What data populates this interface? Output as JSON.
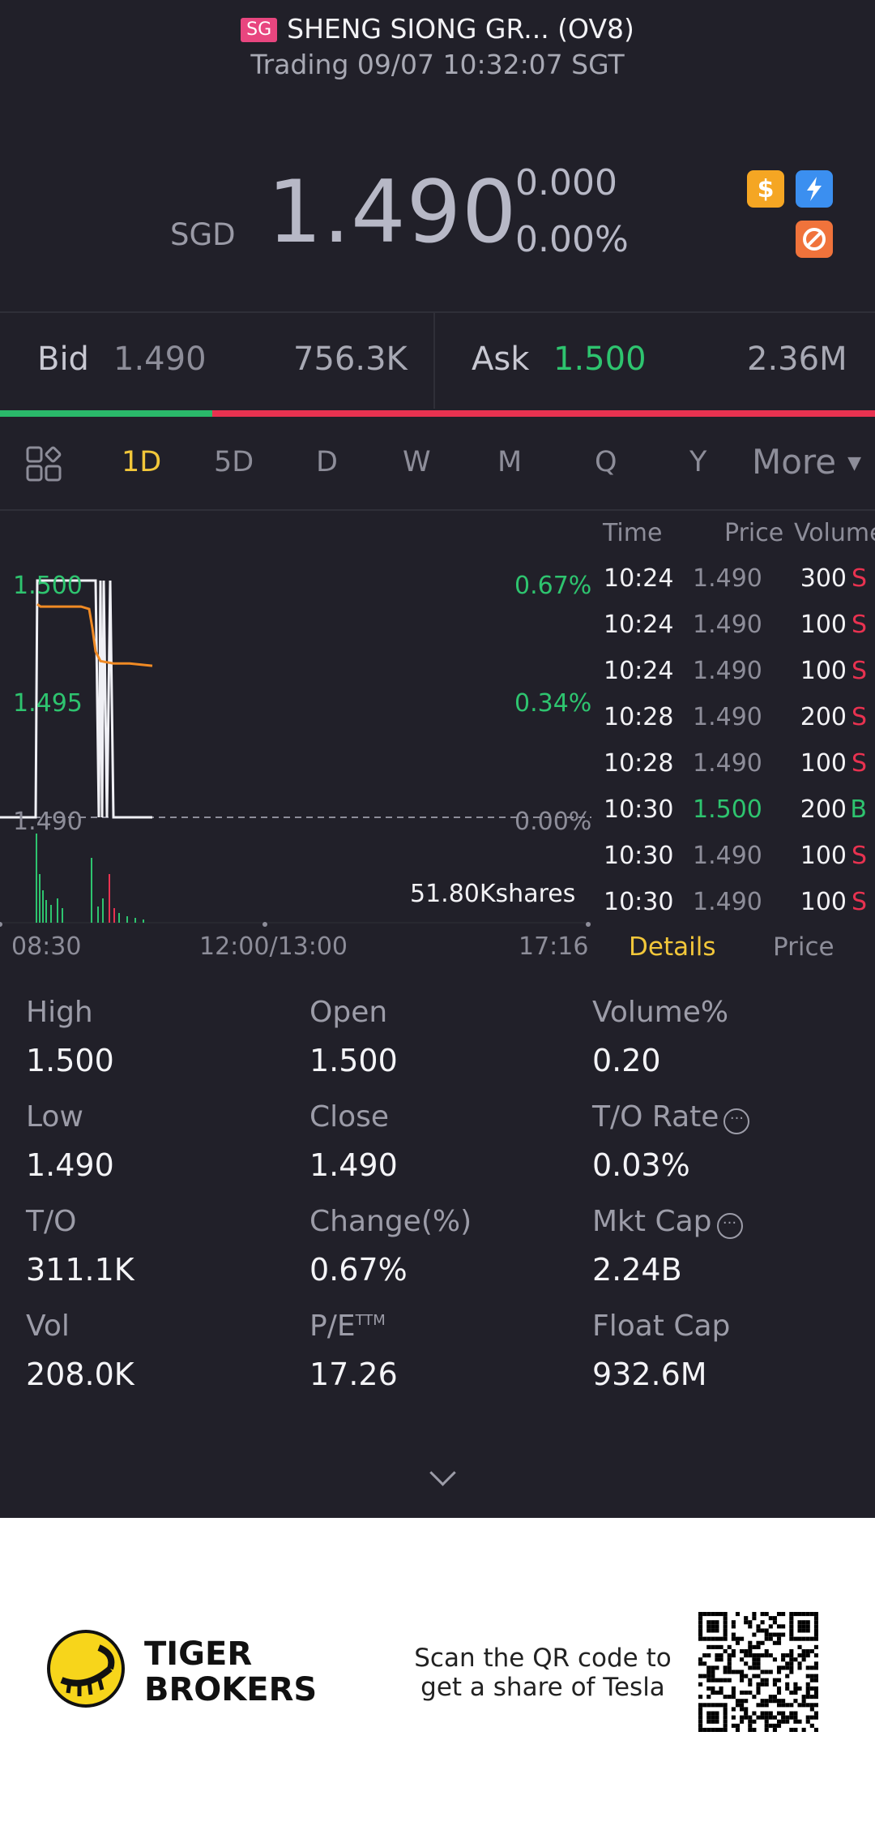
{
  "header": {
    "market_badge": "SG",
    "title": "SHENG SIONG GR... (OV8)",
    "status": "Trading 09/07 10:32:07 SGT"
  },
  "quote": {
    "currency": "SGD",
    "price": "1.490",
    "change": "0.000",
    "change_pct": "0.00%"
  },
  "icons": [
    "dollar-icon",
    "lightning-level1-icon",
    "ban-short-icon"
  ],
  "bid_ask": {
    "bid_label": "Bid",
    "bid_price": "1.490",
    "bid_size": "756.3K",
    "ask_label": "Ask",
    "ask_price": "1.500",
    "ask_size": "2.36M",
    "bid_ratio": 0.243
  },
  "period_tabs": [
    "1D",
    "5D",
    "D",
    "W",
    "M",
    "Q",
    "Y"
  ],
  "more_label": "More",
  "active_tab": "1D",
  "chart_data": {
    "type": "line",
    "title": "",
    "y_left_labels": [
      "1.500",
      "1.495",
      "1.490"
    ],
    "y_right_labels": [
      "0.67%",
      "0.34%",
      "0.00%"
    ],
    "x_labels": [
      "08:30",
      "12:00/13:00",
      "17:16"
    ],
    "volume_label": "51.80Kshares",
    "ylim": [
      1.49,
      1.5
    ],
    "series": [
      {
        "values": [
          1.49,
          1.49,
          1.49,
          1.5,
          1.5,
          1.5,
          1.5,
          1.5,
          1.49,
          1.5,
          1.49,
          1.5,
          1.49,
          1.5,
          1.49,
          1.49,
          1.49
        ]
      },
      {
        "values": [
          1.499,
          1.4989,
          1.4989,
          1.4989,
          1.4989,
          1.4988,
          1.498,
          1.497,
          1.4966,
          1.4965,
          1.4965,
          1.4964
        ]
      }
    ]
  },
  "trades": {
    "headers": {
      "time": "Time",
      "price": "Price",
      "volume": "Volume"
    },
    "rows": [
      {
        "time": "10:24",
        "price": "1.490",
        "volume": "300",
        "flag": "S"
      },
      {
        "time": "10:24",
        "price": "1.490",
        "volume": "100",
        "flag": "S"
      },
      {
        "time": "10:24",
        "price": "1.490",
        "volume": "100",
        "flag": "S"
      },
      {
        "time": "10:28",
        "price": "1.490",
        "volume": "200",
        "flag": "S"
      },
      {
        "time": "10:28",
        "price": "1.490",
        "volume": "100",
        "flag": "S"
      },
      {
        "time": "10:30",
        "price": "1.500",
        "volume": "200",
        "flag": "B"
      },
      {
        "time": "10:30",
        "price": "1.490",
        "volume": "100",
        "flag": "S"
      },
      {
        "time": "10:30",
        "price": "1.490",
        "volume": "100",
        "flag": "S"
      }
    ]
  },
  "detail_tabs": {
    "details": "Details",
    "price": "Price"
  },
  "stats": {
    "high_label": "High",
    "high": "1.500",
    "open_label": "Open",
    "open": "1.500",
    "volume_pct_label": "Volume%",
    "volume_pct": "0.20",
    "low_label": "Low",
    "low": "1.490",
    "close_label": "Close",
    "close": "1.490",
    "to_rate_label": "T/O Rate",
    "to_rate": "0.03%",
    "to_label": "T/O",
    "to": "311.1K",
    "change_pct_label": "Change(%)",
    "change_pct": "0.67%",
    "mkt_cap_label": "Mkt Cap",
    "mkt_cap": "2.24B",
    "vol_label": "Vol",
    "vol": "208.0K",
    "pe_label": "P/E",
    "pe_sup": "TTM",
    "pe": "17.26",
    "float_cap_label": "Float Cap",
    "float_cap": "932.6M"
  },
  "footer": {
    "brand_line1": "TIGER",
    "brand_line2": "BROKERS",
    "scan_line1": "Scan the QR code to",
    "scan_line2": "get a share of Tesla"
  },
  "colors": {
    "background": "#212029",
    "up": "#2ec46f",
    "down": "#e83250",
    "accent": "#f2c73a",
    "avg_line": "#f08a24"
  }
}
